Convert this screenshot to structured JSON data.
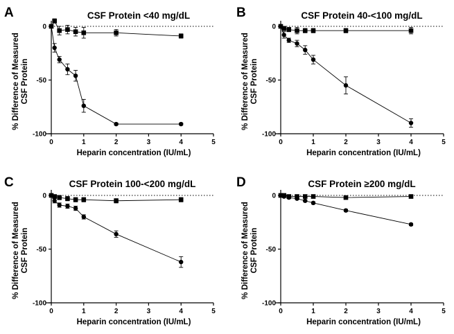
{
  "chart_data": [
    {
      "id": "A",
      "type": "line",
      "letter": "A",
      "title": "CSF Protein <40 mg/dL",
      "xlabel": "Heparin concentration (IU/mL)",
      "ylabel": [
        "% Difference of Measured",
        "CSF Protein"
      ],
      "xlim": [
        0,
        5
      ],
      "ylim": [
        -100,
        0
      ],
      "xticks": [
        0,
        1,
        2,
        3,
        4,
        5
      ],
      "yticks": [
        0,
        -50,
        -100
      ],
      "series": [
        {
          "marker": "square",
          "x": [
            0,
            0.1,
            0.25,
            0.5,
            0.75,
            1,
            2,
            4
          ],
          "y": [
            0,
            5,
            -4,
            -3,
            -5,
            -6,
            -6,
            -9
          ],
          "err": [
            0,
            2,
            4,
            4,
            4,
            5,
            3,
            2
          ]
        },
        {
          "marker": "circle",
          "x": [
            0,
            0.1,
            0.25,
            0.5,
            0.75,
            1,
            2,
            4
          ],
          "y": [
            0,
            -20,
            -31,
            -40,
            -46,
            -74,
            -91,
            -91
          ],
          "err": [
            0,
            4,
            3,
            5,
            5,
            6,
            1,
            1
          ]
        }
      ]
    },
    {
      "id": "B",
      "type": "line",
      "letter": "B",
      "title": "CSF Protein 40-<100 mg/dL",
      "xlabel": "Heparin concentration (IU/mL)",
      "ylabel": [
        "% Difference of Measured",
        "CSF Protein"
      ],
      "xlim": [
        0,
        5
      ],
      "ylim": [
        -100,
        0
      ],
      "xticks": [
        0,
        1,
        2,
        3,
        4,
        5
      ],
      "yticks": [
        0,
        -50,
        -100
      ],
      "series": [
        {
          "marker": "square",
          "x": [
            0,
            0.1,
            0.25,
            0.5,
            0.75,
            1,
            2,
            4
          ],
          "y": [
            0,
            -2,
            -3,
            -4,
            -4,
            -4,
            -4,
            -4
          ],
          "err": [
            0,
            2,
            2,
            3,
            2,
            2,
            2,
            3
          ]
        },
        {
          "marker": "circle",
          "x": [
            0,
            0.1,
            0.25,
            0.5,
            0.75,
            1,
            2,
            4
          ],
          "y": [
            0,
            -8,
            -13,
            -16,
            -22,
            -31,
            -55,
            -90
          ],
          "err": [
            0,
            3,
            2,
            3,
            4,
            4,
            8,
            4
          ]
        }
      ]
    },
    {
      "id": "C",
      "type": "line",
      "letter": "C",
      "title": "CSF Protein 100-<200 mg/dL",
      "xlabel": "Heparin concentration (IU/mL)",
      "ylabel": [
        "% Difference of Measured",
        "CSF Protein"
      ],
      "xlim": [
        0,
        5
      ],
      "ylim": [
        -100,
        0
      ],
      "xticks": [
        0,
        1,
        2,
        3,
        4,
        5
      ],
      "yticks": [
        0,
        -50,
        -100
      ],
      "series": [
        {
          "marker": "square",
          "x": [
            0,
            0.1,
            0.25,
            0.5,
            0.75,
            1,
            2,
            4
          ],
          "y": [
            0,
            -1,
            -2,
            -3,
            -4,
            -4,
            -5,
            -4
          ],
          "err": [
            0,
            1,
            2,
            2,
            2,
            2,
            2,
            2
          ]
        },
        {
          "marker": "circle",
          "x": [
            0,
            0.1,
            0.25,
            0.5,
            0.75,
            1,
            2,
            4
          ],
          "y": [
            0,
            -5,
            -9,
            -10,
            -12,
            -20,
            -36,
            -62
          ],
          "err": [
            0,
            2,
            2,
            2,
            2,
            2,
            3,
            5
          ]
        }
      ]
    },
    {
      "id": "D",
      "type": "line",
      "letter": "D",
      "title": "CSF Protein ≥200 mg/dL",
      "xlabel": "Heparin concentration (IU/mL)",
      "ylabel": [
        "% Difference of Measured",
        "CSF Protein"
      ],
      "xlim": [
        0,
        5
      ],
      "ylim": [
        -100,
        0
      ],
      "xticks": [
        0,
        1,
        2,
        3,
        4,
        5
      ],
      "yticks": [
        0,
        -50,
        -100
      ],
      "series": [
        {
          "marker": "square",
          "x": [
            0,
            0.1,
            0.25,
            0.5,
            0.75,
            1,
            2,
            4
          ],
          "y": [
            0,
            0,
            -1,
            -1,
            -1,
            -1,
            -2,
            -1
          ],
          "err": [
            0,
            1,
            1,
            1,
            1,
            1,
            1,
            1
          ]
        },
        {
          "marker": "circle",
          "x": [
            0,
            0.1,
            0.25,
            0.5,
            0.75,
            1,
            2,
            4
          ],
          "y": [
            0,
            -1,
            -2,
            -3,
            -5,
            -7,
            -14,
            -27
          ],
          "err": [
            0,
            1,
            1,
            1,
            1,
            1,
            1,
            1
          ]
        }
      ]
    }
  ]
}
